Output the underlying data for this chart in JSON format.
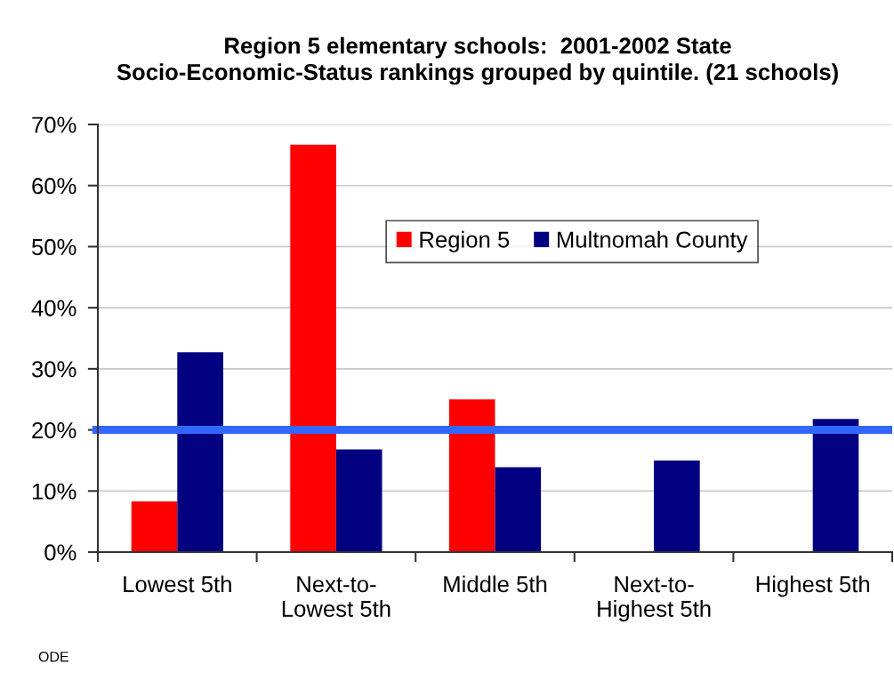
{
  "chart_data": {
    "type": "bar",
    "title": "Region 5 elementary schools:  2001-2002 State\nSocio-Economic-Status rankings grouped by quintile. (21 schools)",
    "categories": [
      "Lowest 5th",
      "Next-to-Lowest 5th",
      "Middle 5th",
      "Next-to-Highest 5th",
      "Highest 5th"
    ],
    "series": [
      {
        "name": "Region 5",
        "color": "#ff0000",
        "values": [
          8.3,
          66.7,
          25.0,
          0,
          0
        ]
      },
      {
        "name": "Multnomah County",
        "color": "#000080",
        "values": [
          32.7,
          16.8,
          13.9,
          15.0,
          21.8
        ]
      }
    ],
    "ylim": [
      0,
      70
    ],
    "yticks": [
      {
        "value": 0,
        "label": "0%"
      },
      {
        "value": 10,
        "label": "10%"
      },
      {
        "value": 20,
        "label": "20%"
      },
      {
        "value": 30,
        "label": "30%"
      },
      {
        "value": 40,
        "label": "40%"
      },
      {
        "value": 50,
        "label": "50%"
      },
      {
        "value": 60,
        "label": "60%"
      },
      {
        "value": 70,
        "label": "70%"
      }
    ],
    "grid": "y",
    "legend": "top",
    "ref_lines": [
      {
        "axis": "y",
        "value": 20,
        "color": "#3366ff"
      }
    ],
    "annotations": [
      "ODE"
    ]
  }
}
